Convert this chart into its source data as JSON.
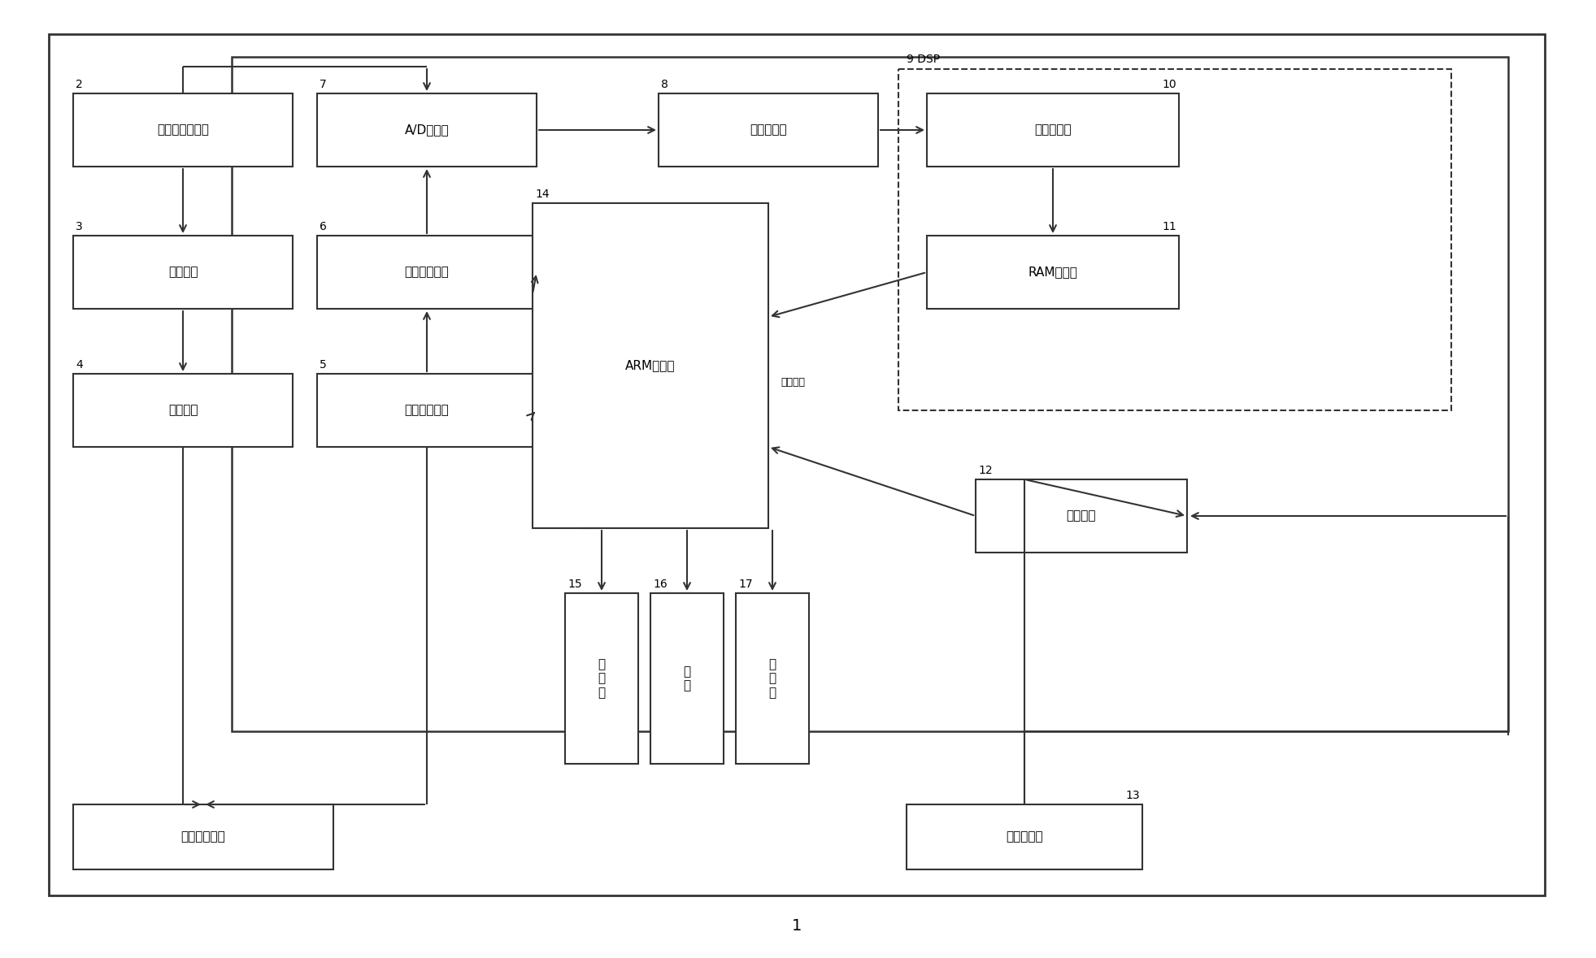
{
  "bg_color": "#ffffff",
  "line_color": "#333333",
  "text_color": "#000000",
  "box_fill": "#ffffff",
  "fs_label": 11,
  "fs_num": 10,
  "fs_small": 9,
  "outer_label": "1",
  "dsp_label": "9 DSP",
  "transfer_text": "传输数据",
  "blocks": {
    "b2": {
      "label": "超声脉冲发生器",
      "num": "2"
    },
    "b3": {
      "label": "升压电路",
      "num": "3"
    },
    "b4": {
      "label": "发射电路",
      "num": "4"
    },
    "b5": {
      "label": "可编程滤波器",
      "num": "5"
    },
    "b6": {
      "label": "可编程放大器",
      "num": "6"
    },
    "b7": {
      "label": "A/D转换器",
      "num": "7"
    },
    "b8": {
      "label": "数据缓存器",
      "num": "8"
    },
    "b10": {
      "label": "时钟计数器",
      "num": "10"
    },
    "b11": {
      "label": "RAM存储区",
      "num": "11"
    },
    "b14": {
      "label": "ARM处理器",
      "num": "14"
    },
    "b12": {
      "label": "测温电路",
      "num": "12"
    },
    "b15": {
      "label": "存\n储\n器",
      "num": "15"
    },
    "b16": {
      "label": "键\n盘",
      "num": "16"
    },
    "b17": {
      "label": "显\n示\n器",
      "num": "17"
    },
    "b1a": {
      "label": "超声波换能器",
      "num": ""
    },
    "b13": {
      "label": "温度传感器",
      "num": "13"
    }
  }
}
